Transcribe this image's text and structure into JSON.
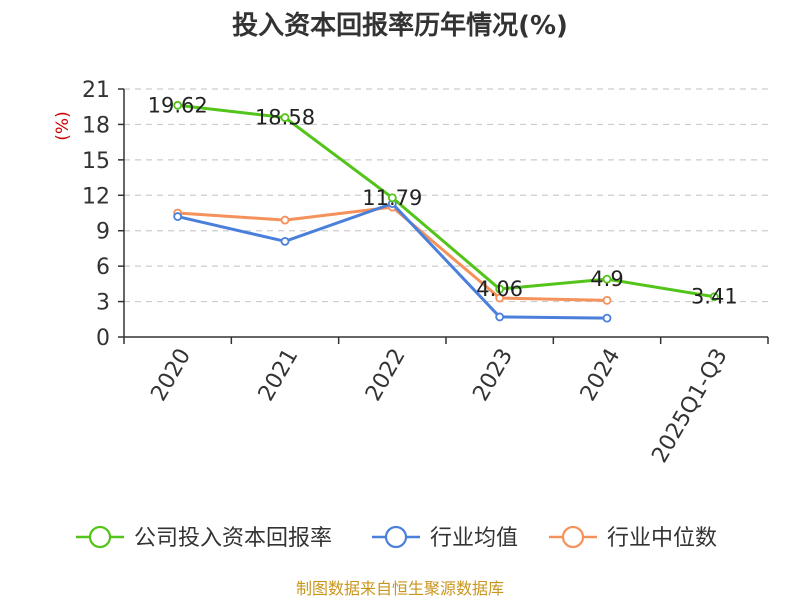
{
  "source_text": "制图数据来自恒生聚源数据库",
  "colors": {
    "grid": "#cccccc",
    "axis": "#333333",
    "ylabel": "#cc0000",
    "source": "#c8961e"
  },
  "chart_data": {
    "type": "line",
    "title": "投入资本回报率历年情况(%)",
    "ylabel": "(%)",
    "xlabel": "",
    "categories": [
      "2020",
      "2021",
      "2022",
      "2023",
      "2024",
      "2025Q1-Q3"
    ],
    "ylim": [
      0,
      21
    ],
    "yticks": [
      0,
      3,
      6,
      9,
      12,
      15,
      18,
      21
    ],
    "grid": true,
    "legend_position": "bottom",
    "series": [
      {
        "name": "公司投入资本回报率",
        "color": "#52c41a",
        "values": [
          19.62,
          18.58,
          11.79,
          4.06,
          4.9,
          3.41
        ],
        "labels": [
          "19.62",
          "18.58",
          "11.79",
          "4.06",
          "4.9",
          "3.41"
        ]
      },
      {
        "name": "行业均值",
        "color": "#4a7fdb",
        "values": [
          10.2,
          8.1,
          11.3,
          1.7,
          1.6,
          null
        ]
      },
      {
        "name": "行业中位数",
        "color": "#f5915a",
        "values": [
          10.5,
          9.9,
          11.0,
          3.3,
          3.1,
          null
        ]
      }
    ]
  }
}
